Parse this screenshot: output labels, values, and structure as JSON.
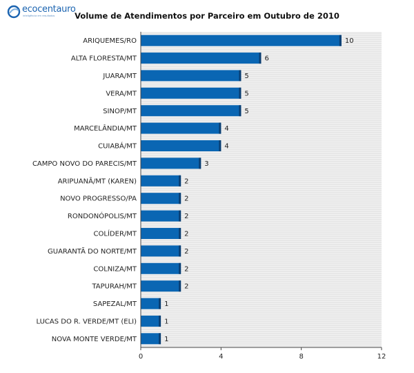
{
  "logo": {
    "name": "ecocentauro",
    "tagline": "inteligência em resultados"
  },
  "chart_data": {
    "type": "bar",
    "orientation": "horizontal",
    "title": "Volume de Atendimentos por Parceiro em Outubro de 2010",
    "categories": [
      "ARIQUEMES/RO",
      "ALTA FLORESTA/MT",
      "JUARA/MT",
      "VERA/MT",
      "SINOP/MT",
      "MARCELÂNDIA/MT",
      "CUIABÁ/MT",
      "CAMPO NOVO DO PARECIS/MT",
      "ARIPUANÃ/MT (KAREN)",
      "NOVO PROGRESSO/PA",
      "RONDONÓPOLIS/MT",
      "COLÍDER/MT",
      "GUARANTÃ DO NORTE/MT",
      "COLNIZA/MT",
      "TAPURAH/MT",
      "SAPEZAL/MT",
      "LUCAS DO R. VERDE/MT (ELI)",
      "NOVA MONTE VERDE/MT"
    ],
    "values": [
      10,
      6,
      5,
      5,
      5,
      4,
      4,
      3,
      2,
      2,
      2,
      2,
      2,
      2,
      2,
      1,
      1,
      1
    ],
    "xlim": [
      0,
      12
    ],
    "xticks": [
      0,
      4,
      8,
      12
    ],
    "grid": true,
    "bar_color": "#0a66b3",
    "bar_shadow_color": "#0b3f73",
    "grid_color": "#dcdcdc",
    "plot_background": "#f2f2f2"
  }
}
